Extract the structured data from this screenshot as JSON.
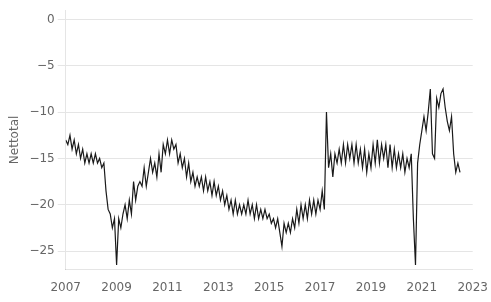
{
  "chart_data": {
    "type": "line",
    "ylabel": "Nettotal",
    "xlim": [
      2007,
      2023
    ],
    "ylim": [
      -27,
      1
    ],
    "xticks": [
      2007,
      2009,
      2011,
      2013,
      2015,
      2017,
      2019,
      2021,
      2023
    ],
    "yticks": [
      0,
      {
        "value": -5,
        "label": "−5"
      },
      {
        "value": -10,
        "label": "−10"
      },
      {
        "value": -15,
        "label": "−15"
      },
      {
        "value": -20,
        "label": "−20"
      },
      {
        "value": -25,
        "label": "−25"
      }
    ],
    "grid": "y",
    "color": "#1a1a1a",
    "x": [
      2007.0,
      2007.083,
      2007.167,
      2007.25,
      2007.333,
      2007.417,
      2007.5,
      2007.583,
      2007.667,
      2007.75,
      2007.833,
      2007.917,
      2008.0,
      2008.083,
      2008.167,
      2008.25,
      2008.333,
      2008.417,
      2008.5,
      2008.583,
      2008.667,
      2008.75,
      2008.833,
      2008.917,
      2009.0,
      2009.083,
      2009.167,
      2009.25,
      2009.333,
      2009.417,
      2009.5,
      2009.583,
      2009.667,
      2009.75,
      2009.833,
      2009.917,
      2010.0,
      2010.083,
      2010.167,
      2010.25,
      2010.333,
      2010.417,
      2010.5,
      2010.583,
      2010.667,
      2010.75,
      2010.833,
      2010.917,
      2011.0,
      2011.083,
      2011.167,
      2011.25,
      2011.333,
      2011.417,
      2011.5,
      2011.583,
      2011.667,
      2011.75,
      2011.833,
      2011.917,
      2012.0,
      2012.083,
      2012.167,
      2012.25,
      2012.333,
      2012.417,
      2012.5,
      2012.583,
      2012.667,
      2012.75,
      2012.833,
      2012.917,
      2013.0,
      2013.083,
      2013.167,
      2013.25,
      2013.333,
      2013.417,
      2013.5,
      2013.583,
      2013.667,
      2013.75,
      2013.833,
      2013.917,
      2014.0,
      2014.083,
      2014.167,
      2014.25,
      2014.333,
      2014.417,
      2014.5,
      2014.583,
      2014.667,
      2014.75,
      2014.833,
      2014.917,
      2015.0,
      2015.083,
      2015.167,
      2015.25,
      2015.333,
      2015.417,
      2015.5,
      2015.583,
      2015.667,
      2015.75,
      2015.833,
      2015.917,
      2016.0,
      2016.083,
      2016.167,
      2016.25,
      2016.333,
      2016.417,
      2016.5,
      2016.583,
      2016.667,
      2016.75,
      2016.833,
      2016.917,
      2017.0,
      2017.083,
      2017.167,
      2017.25,
      2017.333,
      2017.417,
      2017.5,
      2017.583,
      2017.667,
      2017.75,
      2017.833,
      2017.917,
      2018.0,
      2018.083,
      2018.167,
      2018.25,
      2018.333,
      2018.417,
      2018.5,
      2018.583,
      2018.667,
      2018.75,
      2018.833,
      2018.917,
      2019.0,
      2019.083,
      2019.167,
      2019.25,
      2019.333,
      2019.417,
      2019.5,
      2019.583,
      2019.667,
      2019.75,
      2019.833,
      2019.917,
      2020.0,
      2020.083,
      2020.167,
      2020.25,
      2020.333,
      2020.417,
      2020.5,
      2020.583,
      2020.667,
      2020.75,
      2020.833,
      2020.917,
      2021.0,
      2021.083,
      2021.167,
      2021.25,
      2021.333,
      2021.417,
      2021.5,
      2021.583,
      2021.667,
      2021.75,
      2021.833,
      2021.917,
      2022.0,
      2022.083,
      2022.167,
      2022.25,
      2022.333,
      2022.417,
      2022.5
    ],
    "values": [
      -13.0,
      -13.5,
      -12.5,
      -14.0,
      -13.0,
      -14.5,
      -13.5,
      -15.0,
      -14.0,
      -15.5,
      -14.5,
      -15.5,
      -14.5,
      -15.5,
      -14.5,
      -15.5,
      -15.0,
      -16.0,
      -15.5,
      -18.5,
      -20.5,
      -21.0,
      -22.5,
      -21.5,
      -26.5,
      -21.5,
      -22.5,
      -21.0,
      -20.0,
      -21.5,
      -19.5,
      -21.0,
      -17.5,
      -19.5,
      -18.0,
      -17.5,
      -18.0,
      -16.0,
      -18.0,
      -16.5,
      -15.0,
      -16.5,
      -15.5,
      -17.0,
      -14.5,
      -16.5,
      -13.5,
      -14.5,
      -13.0,
      -14.5,
      -13.0,
      -14.0,
      -13.5,
      -15.5,
      -14.5,
      -16.0,
      -15.0,
      -17.0,
      -15.5,
      -17.5,
      -16.5,
      -18.0,
      -17.0,
      -18.0,
      -17.0,
      -18.5,
      -17.0,
      -18.5,
      -17.5,
      -19.0,
      -17.5,
      -19.0,
      -18.0,
      -19.5,
      -18.5,
      -20.0,
      -19.0,
      -20.5,
      -19.5,
      -21.0,
      -19.5,
      -21.0,
      -20.0,
      -21.0,
      -20.0,
      -21.0,
      -19.5,
      -21.0,
      -20.0,
      -21.5,
      -20.0,
      -21.5,
      -20.5,
      -21.5,
      -20.5,
      -21.5,
      -21.0,
      -22.0,
      -21.5,
      -22.5,
      -21.5,
      -23.0,
      -24.5,
      -22.0,
      -23.0,
      -22.0,
      -23.0,
      -21.5,
      -22.5,
      -20.5,
      -22.0,
      -20.0,
      -21.5,
      -20.0,
      -21.5,
      -19.5,
      -21.0,
      -19.5,
      -21.0,
      -19.5,
      -20.5,
      -18.5,
      -20.5,
      -10.0,
      -16.0,
      -14.5,
      -17.0,
      -14.5,
      -15.5,
      -14.0,
      -15.5,
      -13.5,
      -15.5,
      -13.5,
      -15.0,
      -13.5,
      -15.5,
      -13.5,
      -15.5,
      -14.0,
      -16.0,
      -14.0,
      -16.5,
      -14.5,
      -16.0,
      -13.5,
      -15.5,
      -13.0,
      -15.5,
      -13.5,
      -15.0,
      -13.5,
      -16.0,
      -13.5,
      -16.0,
      -14.0,
      -16.0,
      -14.5,
      -16.0,
      -14.5,
      -16.5,
      -15.0,
      -16.0,
      -14.5,
      -21.5,
      -26.5,
      -15.5,
      -13.5,
      -12.0,
      -10.5,
      -12.0,
      -10.0,
      -7.5,
      -14.5,
      -15.0,
      -8.5,
      -9.5,
      -8.0,
      -7.5,
      -9.5,
      -11.0,
      -12.0,
      -10.5,
      -14.5,
      -16.5,
      -15.5,
      -16.5
    ]
  }
}
